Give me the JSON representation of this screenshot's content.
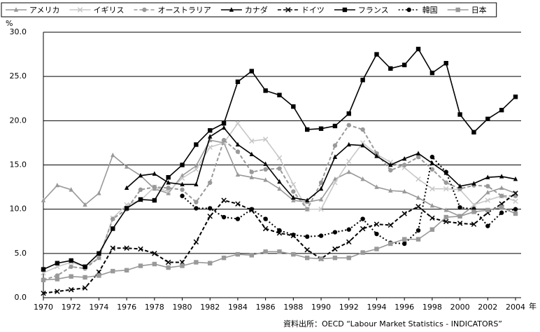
{
  "chart_data": {
    "type": "line",
    "y_label": "%",
    "x_label": "年",
    "source": "資料出所：OECD “Labour Market Statistics - INDICATORS”",
    "x": [
      1970,
      1971,
      1972,
      1973,
      1974,
      1975,
      1976,
      1977,
      1978,
      1979,
      1980,
      1981,
      1982,
      1983,
      1984,
      1985,
      1986,
      1987,
      1988,
      1989,
      1990,
      1991,
      1992,
      1993,
      1994,
      1995,
      1996,
      1997,
      1998,
      1999,
      2000,
      2001,
      2002,
      2003,
      2004
    ],
    "xlim": [
      1970,
      2004
    ],
    "xticks": [
      1970,
      1972,
      1974,
      1976,
      1978,
      1980,
      1982,
      1984,
      1986,
      1988,
      1990,
      1992,
      1994,
      1996,
      1998,
      2000,
      2002,
      2004
    ],
    "ylim": [
      0,
      30
    ],
    "yticks": [
      {
        "value": 0,
        "label": "0.0"
      },
      {
        "value": 5,
        "label": "5.0"
      },
      {
        "value": 10,
        "label": "10.0"
      },
      {
        "value": 15,
        "label": "15.0"
      },
      {
        "value": 20,
        "label": "20.0"
      },
      {
        "value": 25,
        "label": "25.0"
      },
      {
        "value": 30,
        "label": "30.0"
      }
    ],
    "grid": true,
    "legend": "top",
    "series": [
      {
        "name": "アメリカ",
        "color": "#999999",
        "dash": "solid",
        "marker": "triangle",
        "values": [
          11.0,
          12.7,
          12.2,
          10.5,
          11.8,
          16.1,
          14.8,
          13.8,
          12.3,
          11.8,
          13.8,
          14.9,
          17.8,
          17.5,
          13.9,
          13.6,
          13.3,
          12.3,
          11.0,
          10.8,
          11.1,
          13.4,
          14.2,
          13.4,
          12.5,
          12.1,
          12.0,
          11.3,
          10.4,
          9.9,
          9.2,
          10.4,
          11.9,
          12.4,
          11.8
        ]
      },
      {
        "name": "イギリス",
        "color": "#c8c8c8",
        "dash": "solid",
        "marker": "x",
        "values": [
          2.8,
          3.5,
          4.0,
          3.5,
          4.5,
          9.0,
          10.5,
          11.0,
          12.5,
          12.0,
          13.5,
          14.5,
          17.0,
          17.5,
          19.7,
          17.7,
          17.9,
          15.8,
          12.8,
          10.0,
          10.0,
          13.0,
          15.4,
          17.5,
          16.2,
          15.3,
          14.7,
          13.4,
          12.3,
          12.3,
          12.2,
          10.5,
          11.0,
          11.5,
          10.9
        ]
      },
      {
        "name": "オーストラリア",
        "color": "#999999",
        "dash": "dashed",
        "marker": "circle",
        "values": [
          2.0,
          2.5,
          3.5,
          3.3,
          4.5,
          8.9,
          10.0,
          12.2,
          12.5,
          12.4,
          12.2,
          10.8,
          13.0,
          17.8,
          16.5,
          14.2,
          14.5,
          14.6,
          12.0,
          10.0,
          13.0,
          17.2,
          19.5,
          19.0,
          16.3,
          14.4,
          15.0,
          15.9,
          14.5,
          13.0,
          12.3,
          12.7,
          12.6,
          11.5,
          11.5
        ]
      },
      {
        "name": "カナダ",
        "color": "#000000",
        "dash": "solid",
        "marker": "triangle",
        "values": [
          null,
          null,
          null,
          null,
          null,
          null,
          12.4,
          13.8,
          14.0,
          13.0,
          12.8,
          12.8,
          18.2,
          19.2,
          17.3,
          16.2,
          15.1,
          13.1,
          11.3,
          11.0,
          12.3,
          15.9,
          17.3,
          17.2,
          16.0,
          15.0,
          15.7,
          16.3,
          15.2,
          14.1,
          12.6,
          12.9,
          13.6,
          13.7,
          13.4
        ]
      },
      {
        "name": "ドイツ",
        "color": "#000000",
        "dash": "dashed",
        "marker": "x",
        "values": [
          0.5,
          0.7,
          0.9,
          1.1,
          2.9,
          5.6,
          5.6,
          5.5,
          5.0,
          4.0,
          4.0,
          6.3,
          9.2,
          11.0,
          10.6,
          9.9,
          7.8,
          7.3,
          7.0,
          5.4,
          4.4,
          5.5,
          6.3,
          7.8,
          8.3,
          8.2,
          9.5,
          10.3,
          9.0,
          8.6,
          8.4,
          8.3,
          9.6,
          10.6,
          11.8
        ]
      },
      {
        "name": "フランス",
        "color": "#000000",
        "dash": "solid",
        "marker": "square",
        "values": [
          3.2,
          3.9,
          4.2,
          3.5,
          5.0,
          7.8,
          10.1,
          11.1,
          11.0,
          13.6,
          15.0,
          17.3,
          18.9,
          19.7,
          24.4,
          25.6,
          23.4,
          22.9,
          21.6,
          19.0,
          19.1,
          19.4,
          20.8,
          24.6,
          27.5,
          25.9,
          26.3,
          28.1,
          25.4,
          26.5,
          20.7,
          18.7,
          20.2,
          21.2,
          22.7
        ]
      },
      {
        "name": "韓国",
        "color": "#000000",
        "dash": "dotted",
        "marker": "circle",
        "values": [
          null,
          null,
          null,
          null,
          null,
          null,
          null,
          null,
          null,
          null,
          11.5,
          10.1,
          10.1,
          9.1,
          8.9,
          10.0,
          8.9,
          7.6,
          7.1,
          6.9,
          7.0,
          7.4,
          7.7,
          8.9,
          7.2,
          6.2,
          6.1,
          7.6,
          15.9,
          14.2,
          10.2,
          10.0,
          8.1,
          9.6,
          10.0
        ]
      },
      {
        "name": "日本",
        "color": "#999999",
        "dash": "solid",
        "marker": "square",
        "values": [
          2.0,
          2.1,
          2.4,
          2.3,
          2.5,
          3.0,
          3.1,
          3.6,
          3.8,
          3.4,
          3.6,
          4.0,
          3.9,
          4.5,
          4.9,
          4.8,
          5.2,
          5.2,
          4.9,
          4.5,
          4.4,
          4.5,
          4.5,
          5.1,
          5.5,
          6.1,
          6.6,
          6.6,
          7.7,
          9.1,
          9.2,
          9.7,
          9.9,
          10.2,
          9.5
        ]
      }
    ]
  }
}
